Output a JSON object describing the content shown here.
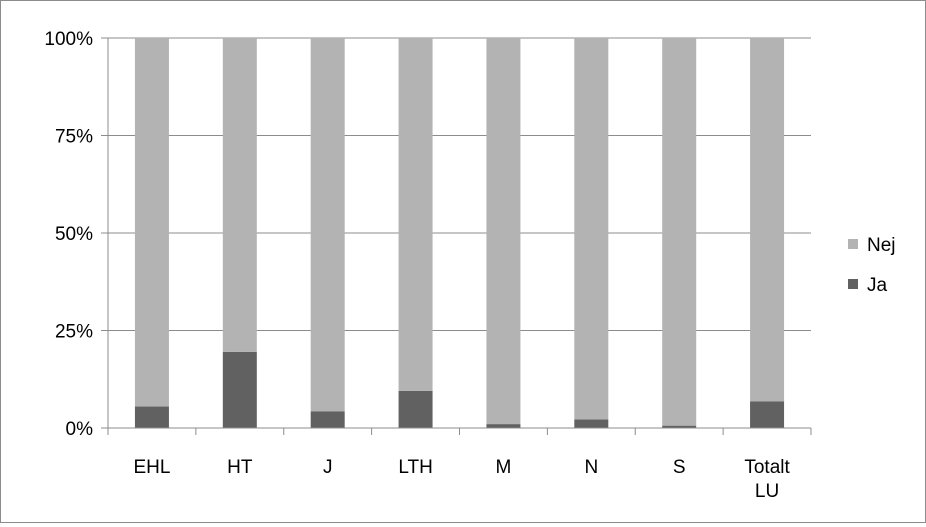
{
  "chart_data": {
    "type": "bar",
    "stacked": true,
    "percent_stacked": true,
    "categories": [
      "EHL",
      "HT",
      "J",
      "LTH",
      "M",
      "N",
      "S",
      "Totalt LU"
    ],
    "series": [
      {
        "name": "Ja",
        "color": "#616161",
        "values": [
          5.5,
          19.5,
          4.3,
          9.5,
          1.0,
          2.2,
          0.6,
          6.8
        ]
      },
      {
        "name": "Nej",
        "color": "#b3b3b3",
        "values": [
          94.5,
          80.5,
          95.7,
          90.5,
          99.0,
          97.8,
          99.4,
          93.2
        ]
      }
    ],
    "y_ticks": [
      "0%",
      "25%",
      "50%",
      "75%",
      "100%"
    ],
    "ylim": [
      0,
      100
    ],
    "grid": true,
    "legend_position": "right",
    "legend": [
      {
        "label": "Nej",
        "color": "#b3b3b3"
      },
      {
        "label": "Ja",
        "color": "#616161"
      }
    ]
  }
}
